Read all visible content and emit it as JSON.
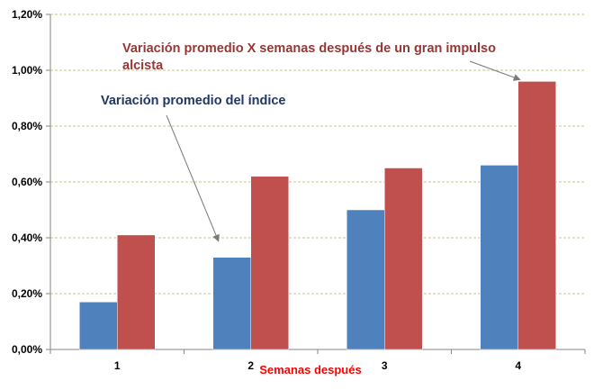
{
  "chart_data": {
    "type": "bar",
    "categories": [
      "1",
      "2",
      "3",
      "4"
    ],
    "series": [
      {
        "values": [
          0.17,
          0.33,
          0.5,
          0.66
        ],
        "color": "#4F81BD"
      },
      {
        "values": [
          0.41,
          0.62,
          0.65,
          0.96
        ],
        "color": "#C0504D"
      }
    ],
    "ylim": [
      0,
      1.2
    ],
    "yticks": [
      "0,00%",
      "0,20%",
      "0,40%",
      "0,60%",
      "0,80%",
      "1,00%",
      "1,20%"
    ],
    "xlabel": "Semanas después",
    "xlabel_color": "#FF0000",
    "grid": true,
    "grid_color": "#C6C68A",
    "annotations": [
      {
        "lines": [
          "Variación promedio X semanas después de un gran impulso",
          "alcista"
        ],
        "color": "#953735",
        "target_category": "4",
        "target_series": 1
      },
      {
        "lines": [
          "Variación promedio del índice"
        ],
        "color": "#1F3864",
        "target_category": "2",
        "target_series": 0
      }
    ]
  }
}
